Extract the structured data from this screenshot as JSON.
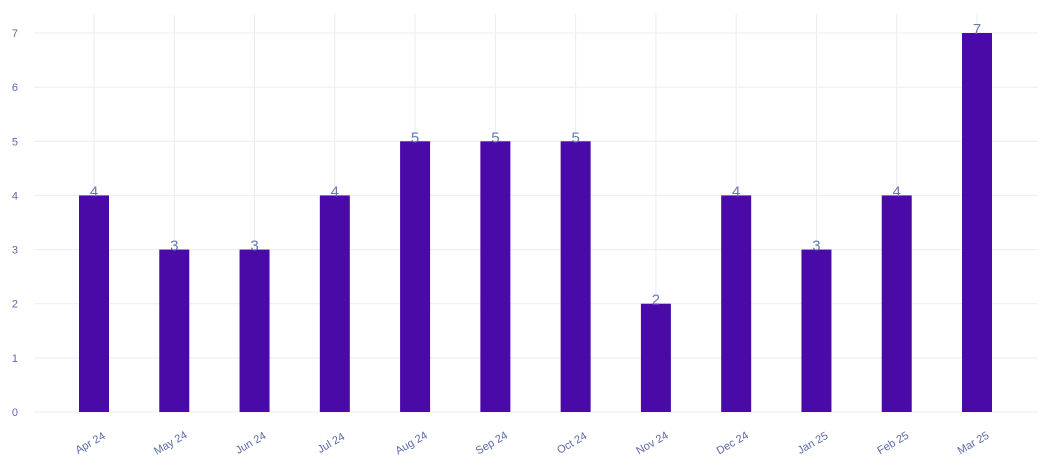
{
  "chart_data": {
    "type": "bar",
    "categories": [
      "Apr 24",
      "May 24",
      "Jun 24",
      "Jul 24",
      "Aug 24",
      "Sep 24",
      "Oct 24",
      "Nov 24",
      "Dec 24",
      "Jan 25",
      "Feb 25",
      "Mar 25"
    ],
    "values": [
      4,
      3,
      3,
      4,
      5,
      5,
      5,
      2,
      4,
      3,
      4,
      7
    ],
    "ylim": [
      0,
      7
    ],
    "yticks": [
      0,
      1,
      2,
      3,
      4,
      5,
      6,
      7
    ],
    "grid": true,
    "data_labels": true,
    "bar_color": "#4a0aa8",
    "grid_color": "#ececf2",
    "tick_label_color": "#5a6aa6",
    "value_label_color": "#6a7aac"
  }
}
